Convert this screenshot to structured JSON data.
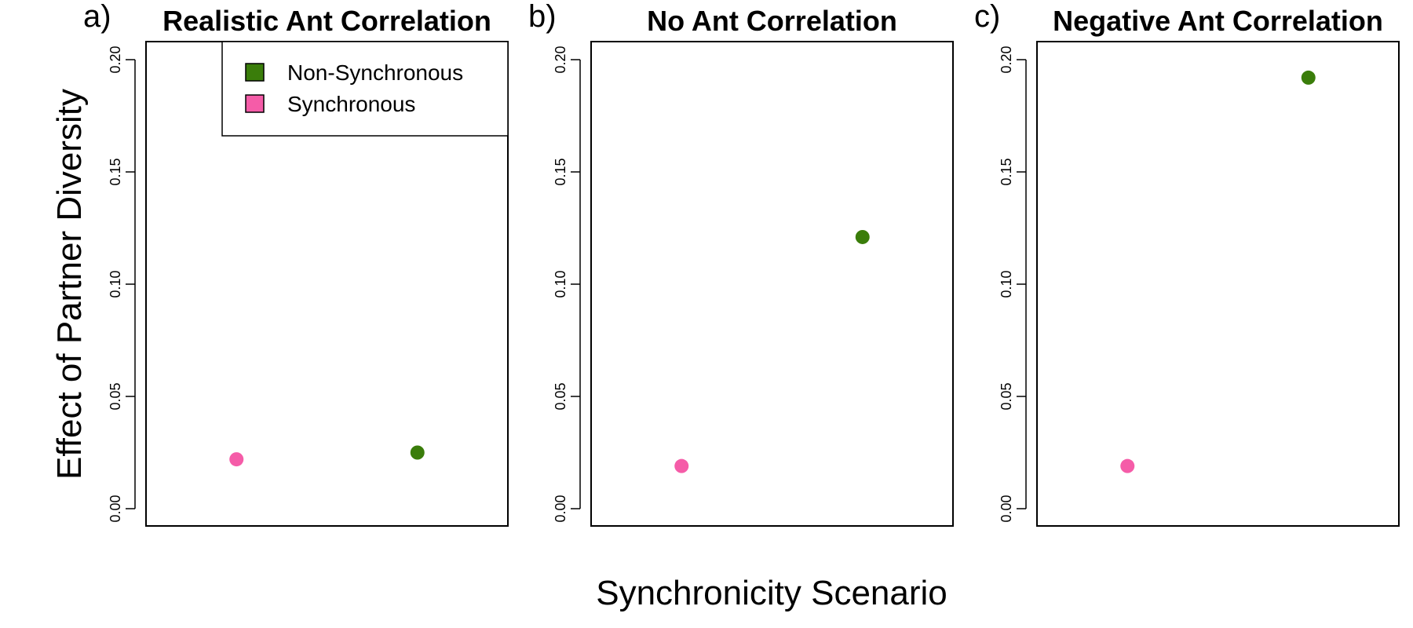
{
  "chart_data": {
    "type": "scatter",
    "ylabel": "Effect of Partner Diversity",
    "xlabel": "Synchronicity Scenario",
    "ylim": [
      0,
      0.2
    ],
    "yticks": [
      "0.00",
      "0.05",
      "0.10",
      "0.15",
      "0.20"
    ],
    "ytick_values": [
      0,
      0.05,
      0.1,
      0.15,
      0.2
    ],
    "xlim": [
      0.5,
      2.5
    ],
    "colors": {
      "non_synchronous": "#3a7d0a",
      "synchronous": "#f55ca8"
    },
    "legend": {
      "position": "top-right of panel a",
      "items": [
        {
          "label": "Non-Synchronous",
          "color": "#3a7d0a"
        },
        {
          "label": "Synchronous",
          "color": "#f55ca8"
        }
      ]
    },
    "panels": [
      {
        "label": "a)",
        "title": "Realistic Ant Correlation",
        "points": [
          {
            "series": "Synchronous",
            "x": 1,
            "y": 0.022
          },
          {
            "series": "Non-Synchronous",
            "x": 2,
            "y": 0.025
          }
        ]
      },
      {
        "label": "b)",
        "title": "No Ant Correlation",
        "points": [
          {
            "series": "Synchronous",
            "x": 1,
            "y": 0.019
          },
          {
            "series": "Non-Synchronous",
            "x": 2,
            "y": 0.121
          }
        ]
      },
      {
        "label": "c)",
        "title": "Negative Ant Correlation",
        "points": [
          {
            "series": "Synchronous",
            "x": 1,
            "y": 0.019
          },
          {
            "series": "Non-Synchronous",
            "x": 2,
            "y": 0.192
          }
        ]
      }
    ]
  }
}
